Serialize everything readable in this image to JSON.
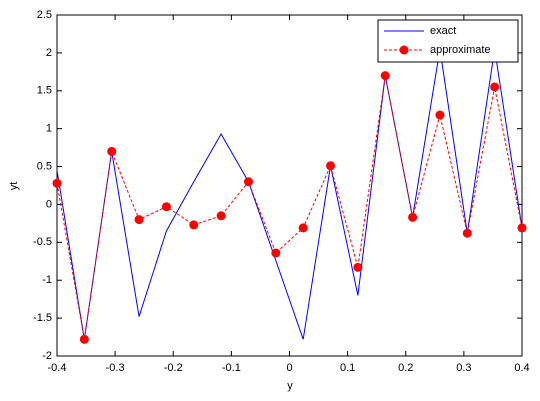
{
  "chart_data": {
    "type": "line",
    "x_label": "y",
    "y_label": "yt",
    "x": [
      -0.4,
      -0.35294,
      -0.30588,
      -0.25882,
      -0.21176,
      -0.16471,
      -0.11765,
      -0.07059,
      -0.02353,
      0.02353,
      0.07059,
      0.11765,
      0.16471,
      0.21176,
      0.25882,
      0.30588,
      0.35294,
      0.4
    ],
    "series": [
      {
        "name": "exact",
        "color": "#0000ff",
        "line_style": "solid",
        "marker": false,
        "values": [
          0.45,
          -1.78,
          0.7,
          -1.48,
          -0.35,
          0.3,
          0.93,
          0.3,
          -0.74,
          -1.78,
          0.51,
          -1.2,
          1.7,
          -0.17,
          2.05,
          -0.38,
          2.05,
          -0.31
        ]
      },
      {
        "name": "approximate",
        "color": "#ff0000",
        "line_style": "dashed",
        "marker": true,
        "values": [
          0.28,
          -1.78,
          0.7,
          -0.2,
          -0.03,
          -0.27,
          -0.15,
          0.3,
          -0.64,
          -0.31,
          0.51,
          -0.83,
          1.7,
          -0.17,
          1.18,
          -0.38,
          1.55,
          -0.31
        ]
      }
    ],
    "xlim": [
      -0.4,
      0.4
    ],
    "xticks": [
      -0.4,
      -0.3,
      -0.2,
      -0.1,
      0,
      0.1,
      0.2,
      0.3,
      0.4
    ],
    "ylim": [
      -2,
      2.5
    ],
    "yticks": [
      -2,
      -1.5,
      -1,
      -0.5,
      0,
      0.5,
      1,
      1.5,
      2,
      2.5
    ],
    "grid": false,
    "legend": "top-right"
  }
}
